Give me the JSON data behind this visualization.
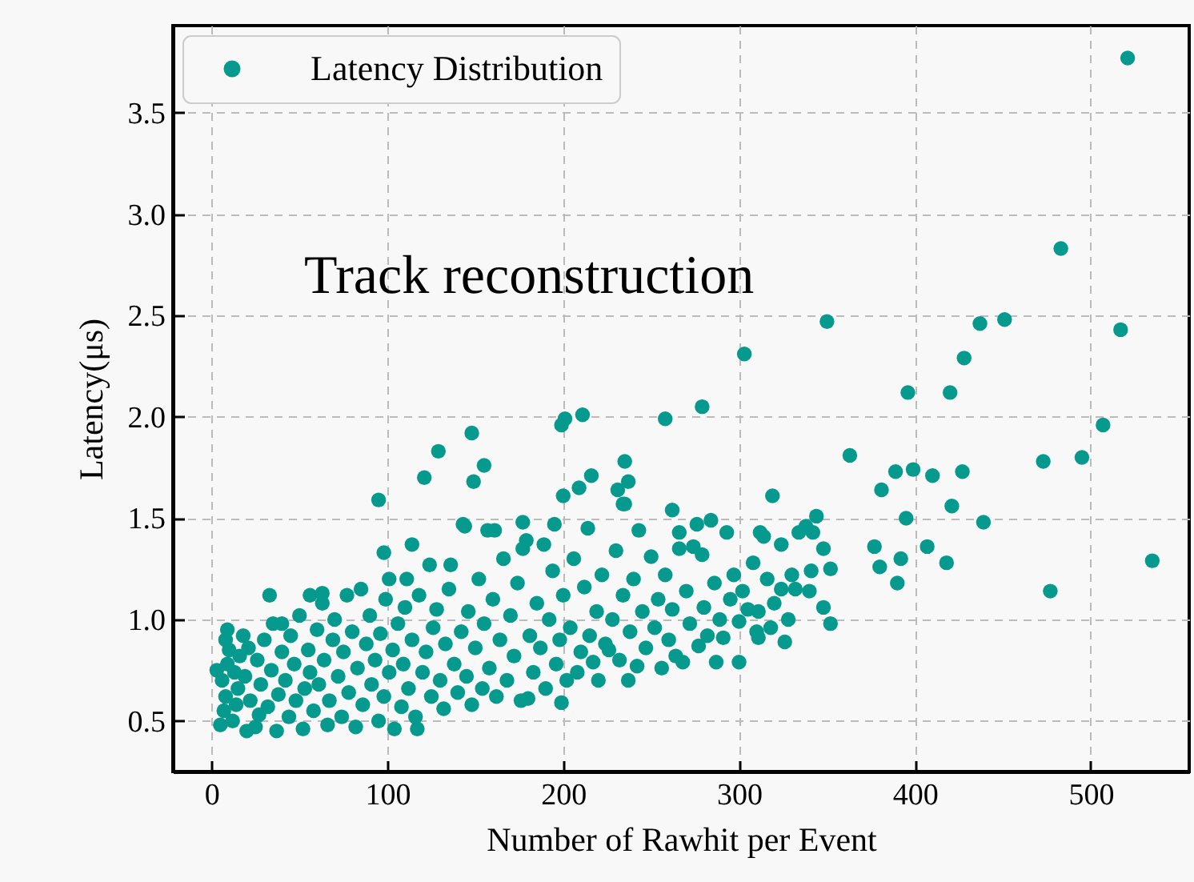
{
  "chart_data": {
    "type": "scatter",
    "xlabel": "Number of Rawhit per Event",
    "ylabel": "Latency(μs)",
    "annotations": [
      "Track reconstruction"
    ],
    "xlim": [
      -22,
      556
    ],
    "ylim": [
      0.25,
      3.93
    ],
    "xticks": [
      0,
      100,
      200,
      300,
      400,
      500
    ],
    "yticks": [
      0.5,
      {
        "value": 1,
        "label": "1.0"
      },
      1.5,
      {
        "value": 2,
        "label": "2.0"
      },
      2.5,
      {
        "value": 3,
        "label": "3.0"
      },
      3.5
    ],
    "grid": true,
    "legend": "top left",
    "marker": "circle",
    "series": [
      {
        "name": "Latency Distribution",
        "color": "#069a8e",
        "x": [
          5,
          7,
          8,
          6,
          9,
          10,
          8,
          12,
          14,
          15,
          13,
          16,
          18,
          20,
          19,
          22,
          21,
          3,
          9,
          25,
          27,
          28,
          26,
          30,
          32,
          34,
          35,
          37,
          38,
          40,
          42,
          44,
          45,
          47,
          48,
          50,
          33,
          40,
          52,
          53,
          55,
          56,
          58,
          60,
          61,
          63,
          64,
          66,
          67,
          69,
          70,
          72,
          74,
          75,
          77,
          78,
          80,
          56,
          63,
          82,
          83,
          85,
          86,
          88,
          90,
          91,
          93,
          95,
          96,
          98,
          99,
          101,
          103,
          104,
          106,
          108,
          109,
          110,
          98,
          101,
          111,
          114,
          112,
          114,
          116,
          117,
          118,
          120,
          122,
          124,
          125,
          126,
          128,
          130,
          132,
          133,
          135,
          136,
          138,
          140,
          121,
          129,
          95,
          142,
          143,
          144,
          145,
          146,
          148,
          150,
          152,
          154,
          155,
          157,
          158,
          160,
          161,
          162,
          164,
          166,
          168,
          170,
          148,
          149,
          155,
          172,
          174,
          176,
          177,
          177,
          179,
          180,
          181,
          183,
          185,
          187,
          189,
          190,
          192,
          194,
          195,
          196,
          198,
          199,
          200,
          200,
          202,
          204,
          206,
          208,
          210,
          212,
          214,
          215,
          217,
          219,
          220,
          222,
          224,
          226,
          228,
          230,
          232,
          234,
          235,
          237,
          238,
          240,
          242,
          243,
          209,
          231,
          216,
          199,
          201,
          211,
          235,
          237,
          234,
          245,
          247,
          250,
          252,
          254,
          256,
          258,
          260,
          262,
          264,
          266,
          266,
          268,
          270,
          272,
          274,
          276,
          277,
          279,
          280,
          282,
          284,
          286,
          287,
          289,
          291,
          293,
          295,
          297,
          300,
          300,
          302,
          305,
          258,
          279,
          262,
          308,
          310,
          311,
          311,
          312,
          314,
          316,
          318,
          319,
          320,
          324,
          324,
          326,
          328,
          330,
          332,
          334,
          338,
          340,
          341,
          342,
          344,
          348,
          348,
          352,
          352,
          303,
          350,
          363,
          377,
          380,
          381,
          389,
          390,
          392,
          395,
          396,
          399,
          407,
          410,
          418,
          420,
          421,
          427,
          428,
          437,
          439,
          451,
          473,
          477,
          483,
          495,
          507,
          517,
          521,
          535
        ],
        "values": [
          0.48,
          0.55,
          0.62,
          0.7,
          0.78,
          0.85,
          0.9,
          0.5,
          0.58,
          0.66,
          0.74,
          0.82,
          0.92,
          0.45,
          0.72,
          0.6,
          0.86,
          0.75,
          0.95,
          0.47,
          0.53,
          0.68,
          0.8,
          0.9,
          0.57,
          0.75,
          0.98,
          0.45,
          0.63,
          0.84,
          0.7,
          0.52,
          0.92,
          0.78,
          0.6,
          1.02,
          1.12,
          0.98,
          0.46,
          0.66,
          0.85,
          0.74,
          0.55,
          0.95,
          0.68,
          1.08,
          0.8,
          0.48,
          0.6,
          0.9,
          1.0,
          0.72,
          0.52,
          0.84,
          1.12,
          0.64,
          0.94,
          1.12,
          1.13,
          0.47,
          0.76,
          1.15,
          0.58,
          0.88,
          1.02,
          0.68,
          0.8,
          0.5,
          0.93,
          0.62,
          1.1,
          0.74,
          0.85,
          0.46,
          0.98,
          0.57,
          0.78,
          1.06,
          1.33,
          1.2,
          1.2,
          1.37,
          0.66,
          0.9,
          0.52,
          0.46,
          1.12,
          0.74,
          0.84,
          1.27,
          0.62,
          0.96,
          1.05,
          0.7,
          0.56,
          0.88,
          1.15,
          1.27,
          0.78,
          0.64,
          1.7,
          1.83,
          1.59,
          0.94,
          1.47,
          1.46,
          0.72,
          1.04,
          0.58,
          0.86,
          1.2,
          0.66,
          0.98,
          1.44,
          0.76,
          1.1,
          1.44,
          0.62,
          0.9,
          1.3,
          0.7,
          1.02,
          1.92,
          1.68,
          1.76,
          0.82,
          1.18,
          0.6,
          1.48,
          1.35,
          1.39,
          0.61,
          0.92,
          0.74,
          1.08,
          0.86,
          1.37,
          0.66,
          1.0,
          1.24,
          1.47,
          0.78,
          0.9,
          0.59,
          1.61,
          1.12,
          0.7,
          0.96,
          1.3,
          0.74,
          0.84,
          1.16,
          1.45,
          0.92,
          0.79,
          1.04,
          0.7,
          1.22,
          0.88,
          0.85,
          1.0,
          1.34,
          0.8,
          1.12,
          1.57,
          0.7,
          0.94,
          1.2,
          0.77,
          1.44,
          1.65,
          1.64,
          1.71,
          1.96,
          1.99,
          2.01,
          1.78,
          1.68,
          1.57,
          1.04,
          0.86,
          1.31,
          0.96,
          1.1,
          0.76,
          1.22,
          0.9,
          1.05,
          0.82,
          1.43,
          1.35,
          0.79,
          1.14,
          0.98,
          1.36,
          1.47,
          0.87,
          1.32,
          1.06,
          0.92,
          1.49,
          1.18,
          0.79,
          1.0,
          0.91,
          1.43,
          1.1,
          1.22,
          0.99,
          0.79,
          1.14,
          1.05,
          1.99,
          2.05,
          1.54,
          1.28,
          0.94,
          0.91,
          1.04,
          1.43,
          1.41,
          1.2,
          0.96,
          1.61,
          1.08,
          1.37,
          1.15,
          0.89,
          1.0,
          1.22,
          1.15,
          1.43,
          1.46,
          1.14,
          1.24,
          1.43,
          1.51,
          1.35,
          1.06,
          1.25,
          0.98,
          2.31,
          2.47,
          1.81,
          1.36,
          1.26,
          1.64,
          1.73,
          1.18,
          1.3,
          1.5,
          2.12,
          1.74,
          1.36,
          1.71,
          1.28,
          2.12,
          1.56,
          1.73,
          2.29,
          2.46,
          1.48,
          2.48,
          1.78,
          1.14,
          2.83,
          1.8,
          1.96,
          2.43,
          3.77,
          1.29
        ]
      }
    ]
  }
}
